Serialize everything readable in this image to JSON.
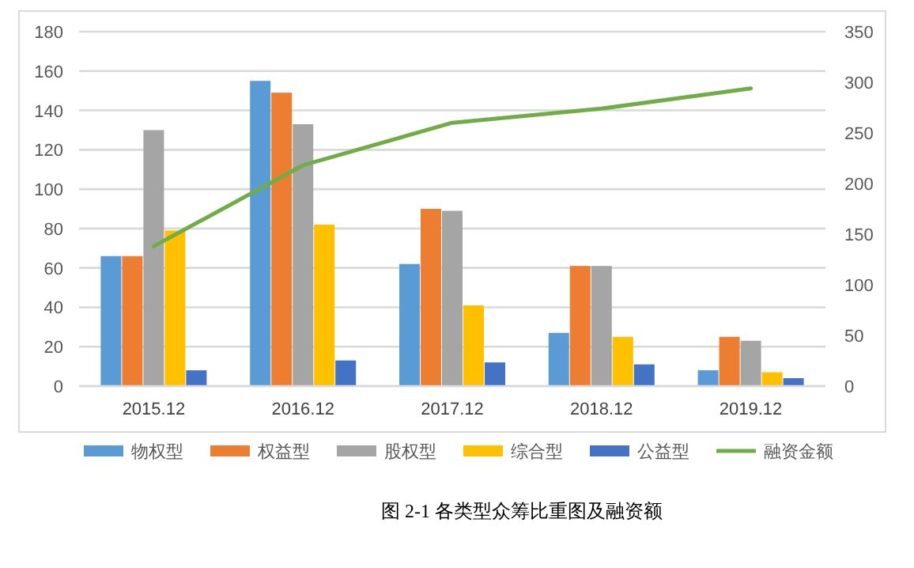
{
  "chart_data": {
    "type": "bar",
    "categories": [
      "2015.12",
      "2016.12",
      "2017.12",
      "2018.12",
      "2019.12"
    ],
    "series": [
      {
        "name": "物权型",
        "color": "#5b9bd5",
        "values": [
          66,
          155,
          62,
          27,
          8
        ]
      },
      {
        "name": "权益型",
        "color": "#ed7d31",
        "values": [
          66,
          149,
          90,
          61,
          25
        ]
      },
      {
        "name": "股权型",
        "color": "#a5a5a5",
        "values": [
          130,
          133,
          89,
          61,
          23
        ]
      },
      {
        "name": "综合型",
        "color": "#ffc000",
        "values": [
          79,
          82,
          41,
          25,
          7
        ]
      },
      {
        "name": "公益型",
        "color": "#4472c4",
        "values": [
          8,
          13,
          12,
          11,
          4
        ]
      },
      {
        "name": "融资金额",
        "color": "#70ad47",
        "type": "line",
        "axis": "y2",
        "values": [
          138,
          218,
          260,
          274,
          294
        ]
      }
    ],
    "ylim": [
      0,
      180
    ],
    "yticks": [
      0,
      20,
      40,
      60,
      80,
      100,
      120,
      140,
      160,
      180
    ],
    "y2lim": [
      0,
      350
    ],
    "y2ticks": [
      0,
      50,
      100,
      150,
      200,
      250,
      300,
      350
    ],
    "grid": "y",
    "legend": "bottom",
    "annotations": [
      "图 2-1  各类型众筹比重图及融资额"
    ]
  }
}
